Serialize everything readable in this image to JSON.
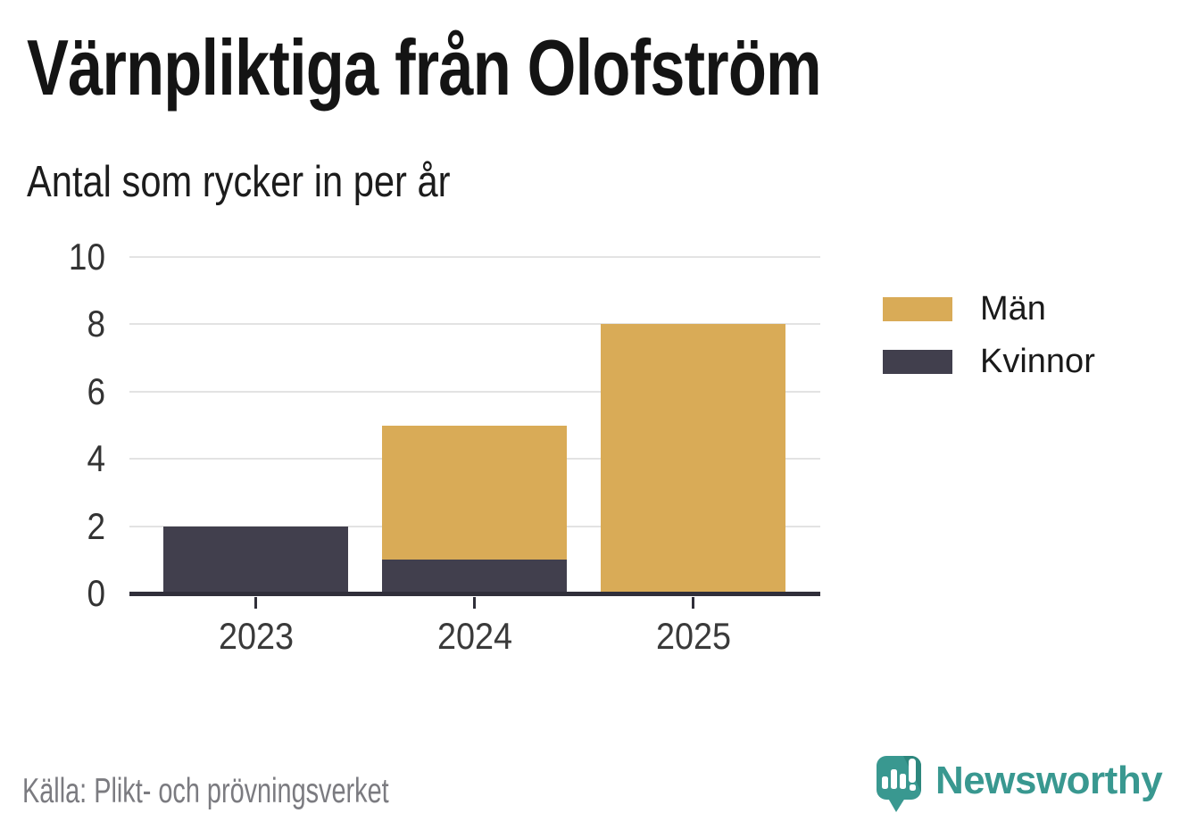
{
  "title": "Värnpliktiga från Olofström",
  "subtitle": "Antal som rycker in per år",
  "source": "Källa: Plikt- och prövningsverket",
  "brand": {
    "name": "Newsworthy",
    "color": "#399890",
    "color_dark": "#2d877d",
    "icon": "newsworthy-speech-bubble-chart-icon"
  },
  "colors": {
    "axis": "#302f3a",
    "grid": "#e3e3e3",
    "tick_label": "#3a3a3a",
    "source_text": "#7b7b80"
  },
  "chart_data": {
    "type": "bar",
    "stacked": true,
    "title": "Värnpliktiga från Olofström",
    "subtitle": "Antal som rycker in per år",
    "categories": [
      "2023",
      "2024",
      "2025"
    ],
    "series": [
      {
        "name": "Män",
        "color": "#d9ab57",
        "values": [
          0,
          4,
          8
        ]
      },
      {
        "name": "Kvinnor",
        "color": "#413f4d",
        "values": [
          2,
          1,
          0
        ]
      }
    ],
    "totals": [
      2,
      5,
      8
    ],
    "xlabel": "",
    "ylabel": "",
    "ylim": [
      0,
      10
    ],
    "yticks": [
      0,
      2,
      4,
      6,
      8,
      10
    ],
    "grid": true,
    "legend_position": "right"
  }
}
